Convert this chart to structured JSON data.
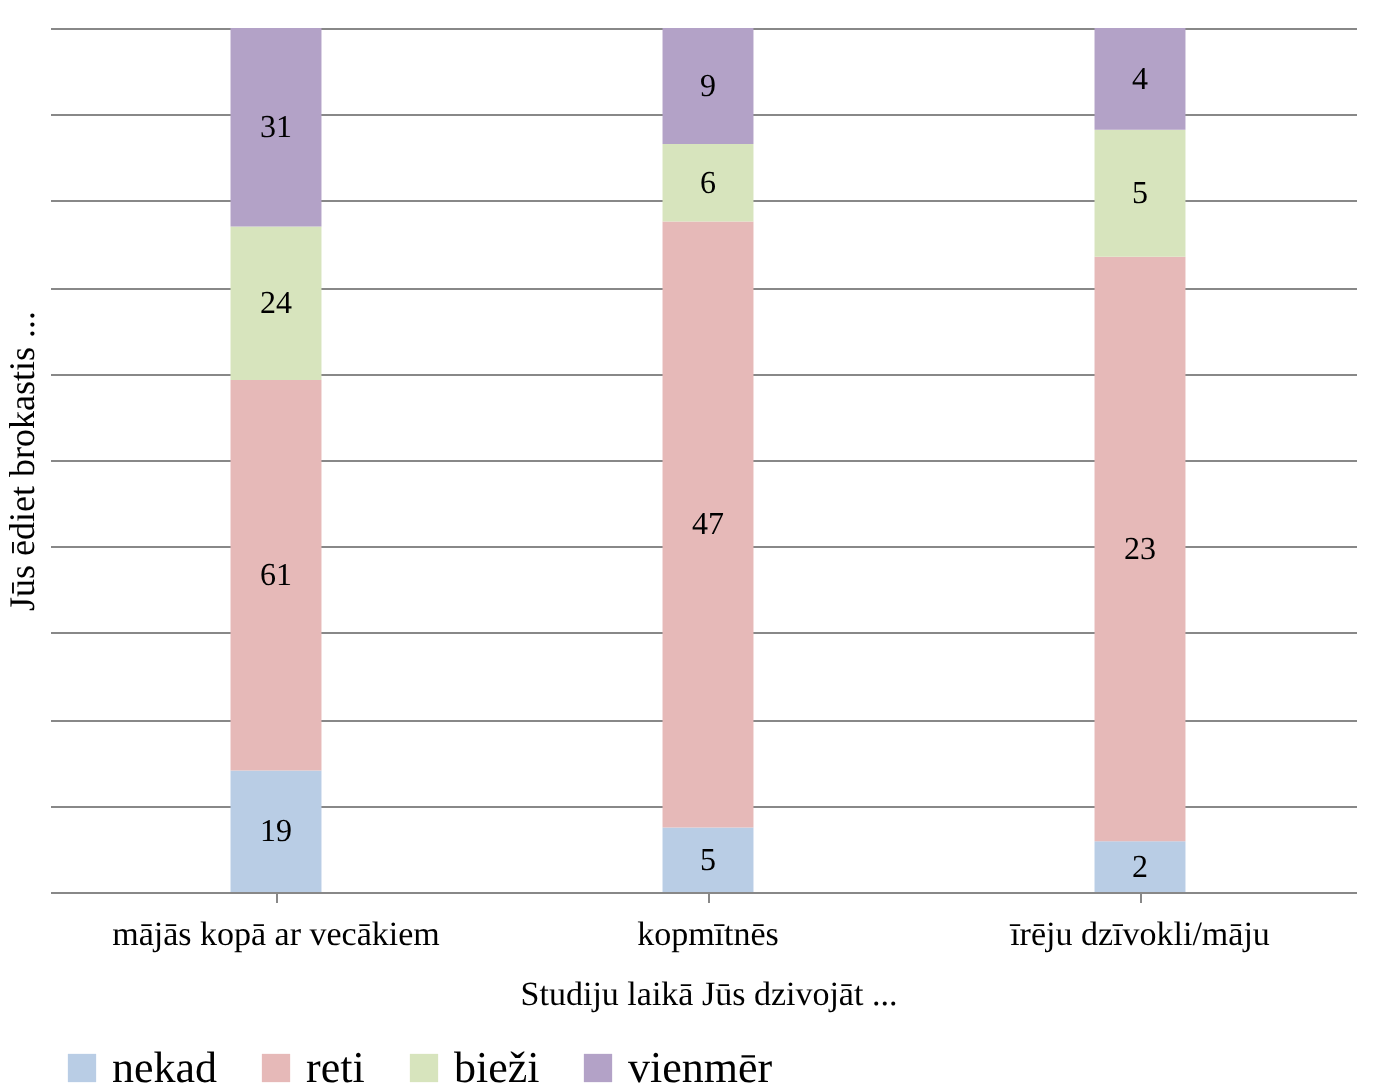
{
  "chart_data": [
    {
      "type": "bar",
      "stacked": true,
      "ylabel": "Jūs ēdiet brokastis ...",
      "categories": [
        "mājās kopā ar vecākiem"
      ],
      "series": [
        {
          "name": "nekad",
          "color": "#b9cde5",
          "values": [
            19
          ]
        },
        {
          "name": "reti",
          "color": "#e6b9b8",
          "values": [
            61
          ]
        },
        {
          "name": "bieži",
          "color": "#d7e4bd",
          "values": [
            24
          ]
        },
        {
          "name": "vienmēr",
          "color": "#b3a2c7",
          "values": [
            31
          ]
        }
      ],
      "ylim": [
        0,
        135
      ],
      "yticks": [
        {
          "value": 0,
          "label": null
        },
        {
          "value": 13.5,
          "label": null
        },
        {
          "value": 27,
          "label": null
        },
        {
          "value": 40.5,
          "label": null
        },
        {
          "value": 54,
          "label": null
        },
        {
          "value": 67.5,
          "label": null
        },
        {
          "value": 81,
          "label": null
        },
        {
          "value": 94.5,
          "label": null
        },
        {
          "value": 108,
          "label": null
        },
        {
          "value": 121.5,
          "label": null
        },
        {
          "value": 135,
          "label": null
        }
      ],
      "tick_labels": "x",
      "data_labels": true,
      "grid": "y",
      "legend": "bottom"
    },
    {
      "type": "bar",
      "stacked": true,
      "xlabel": "Studiju laikā Jūs dzivojāt ...",
      "categories": [
        "kopmītnēs"
      ],
      "series": [
        {
          "name": "nekad",
          "color": "#b9cde5",
          "values": [
            5
          ]
        },
        {
          "name": "reti",
          "color": "#e6b9b8",
          "values": [
            47
          ]
        },
        {
          "name": "bieži",
          "color": "#d7e4bd",
          "values": [
            6
          ]
        },
        {
          "name": "vienmēr",
          "color": "#b3a2c7",
          "values": [
            9
          ]
        }
      ],
      "ylim": [
        0,
        67
      ],
      "yticks": [
        {
          "value": 0,
          "label": null
        },
        {
          "value": 6.7,
          "label": null
        },
        {
          "value": 13.4,
          "label": null
        },
        {
          "value": 20.1,
          "label": null
        },
        {
          "value": 26.8,
          "label": null
        },
        {
          "value": 33.5,
          "label": null
        },
        {
          "value": 40.2,
          "label": null
        },
        {
          "value": 46.9,
          "label": null
        },
        {
          "value": 53.6,
          "label": null
        },
        {
          "value": 60.3,
          "label": null
        },
        {
          "value": 67,
          "label": null
        }
      ],
      "tick_labels": "x",
      "data_labels": true,
      "grid": "y",
      "legend": "bottom"
    },
    {
      "type": "bar",
      "stacked": true,
      "categories": [
        "īrēju dzīvokli/māju"
      ],
      "series": [
        {
          "name": "nekad",
          "color": "#b9cde5",
          "values": [
            2
          ]
        },
        {
          "name": "reti",
          "color": "#e6b9b8",
          "values": [
            23
          ]
        },
        {
          "name": "bieži",
          "color": "#d7e4bd",
          "values": [
            5
          ]
        },
        {
          "name": "vienmēr",
          "color": "#b3a2c7",
          "values": [
            4
          ]
        }
      ],
      "ylim": [
        0,
        34
      ],
      "yticks": [
        {
          "value": 0,
          "label": null
        },
        {
          "value": 3.4,
          "label": null
        },
        {
          "value": 6.8,
          "label": null
        },
        {
          "value": 10.2,
          "label": null
        },
        {
          "value": 13.6,
          "label": null
        },
        {
          "value": 17,
          "label": null
        },
        {
          "value": 20.4,
          "label": null
        },
        {
          "value": 23.8,
          "label": null
        },
        {
          "value": 27.2,
          "label": null
        },
        {
          "value": 30.6,
          "label": null
        },
        {
          "value": 34,
          "label": null
        }
      ],
      "tick_labels": "x",
      "data_labels": true,
      "grid": "y",
      "legend": "bottom"
    }
  ]
}
